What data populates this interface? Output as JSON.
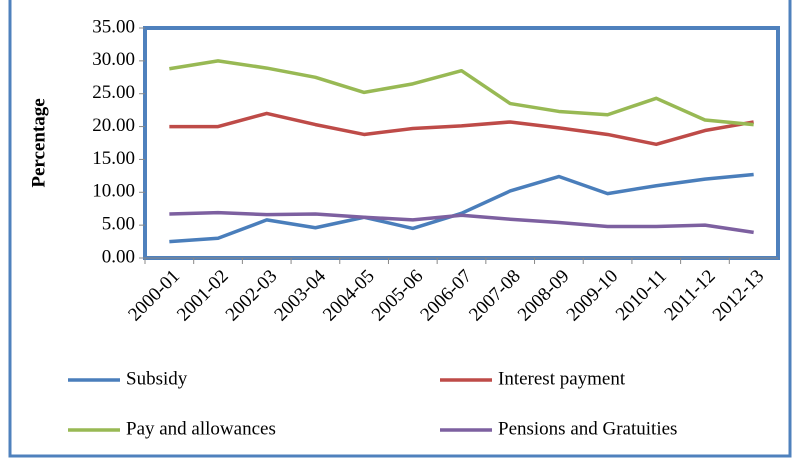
{
  "chart_data": {
    "type": "line",
    "y_label": "Percentage",
    "categories": [
      "2000-01",
      "2001-02",
      "2002-03",
      "2003-04",
      "2004-05",
      "2005-06",
      "2006-07",
      "2007-08",
      "2008-09",
      "2009-10",
      "2010-11",
      "2011-12",
      "2012-13"
    ],
    "series": [
      {
        "name": "Subsidy",
        "color": "#4a7ebb",
        "values": [
          2.5,
          3.0,
          5.8,
          4.6,
          6.2,
          4.5,
          6.8,
          10.2,
          12.4,
          9.8,
          11.0,
          12.0,
          12.7
        ]
      },
      {
        "name": "Interest payment",
        "color": "#be4b48",
        "values": [
          20.0,
          20.0,
          22.0,
          20.3,
          18.8,
          19.7,
          20.1,
          20.7,
          19.8,
          18.8,
          17.3,
          19.4,
          20.7
        ]
      },
      {
        "name": "Pay and allowances",
        "color": "#98b954",
        "values": [
          28.8,
          30.0,
          28.9,
          27.5,
          25.2,
          26.5,
          28.5,
          23.5,
          22.3,
          21.8,
          24.3,
          21.0,
          20.3
        ]
      },
      {
        "name": "Pensions and Gratuities",
        "color": "#7d60a0",
        "values": [
          6.7,
          6.9,
          6.6,
          6.7,
          6.2,
          5.8,
          6.5,
          5.9,
          5.4,
          4.8,
          4.8,
          5.0,
          3.9
        ]
      }
    ],
    "ylim": [
      0,
      35
    ],
    "yticks": [
      {
        "value": 0,
        "label": "0.00"
      },
      {
        "value": 5,
        "label": "5.00"
      },
      {
        "value": 10,
        "label": "10.00"
      },
      {
        "value": 15,
        "label": "15.00"
      },
      {
        "value": 20,
        "label": "20.00"
      },
      {
        "value": 25,
        "label": "25.00"
      },
      {
        "value": 30,
        "label": "30.00"
      },
      {
        "value": 35,
        "label": "35.00"
      }
    ]
  }
}
